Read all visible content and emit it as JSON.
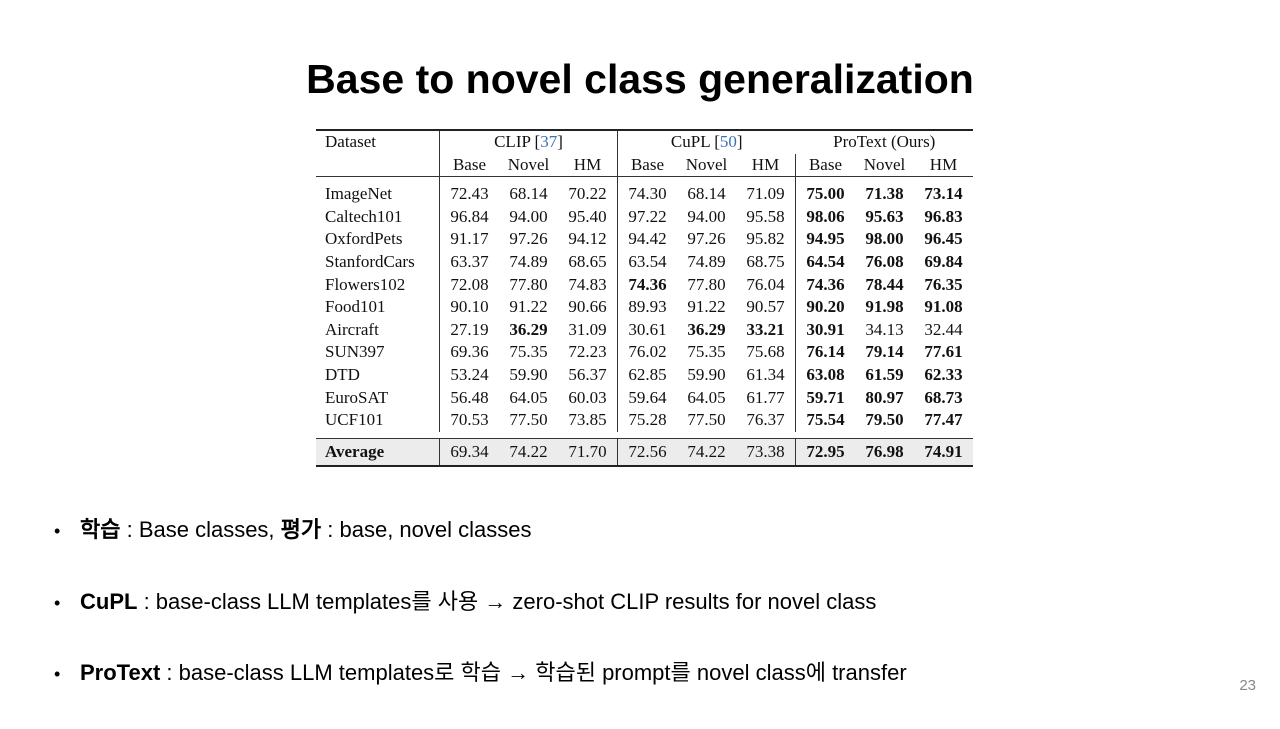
{
  "slide": {
    "title": "Base to novel class generalization",
    "page_number": "23"
  },
  "table": {
    "dataset_header": "Dataset",
    "groups": [
      {
        "name": "CLIP [",
        "cite": "37",
        "close": "]"
      },
      {
        "name": "CuPL [",
        "cite": "50",
        "close": "]"
      },
      {
        "name": "ProText (Ours)",
        "cite": "",
        "close": ""
      }
    ],
    "subheaders": [
      "Base",
      "Novel",
      "HM",
      "Base",
      "Novel",
      "HM",
      "Base",
      "Novel",
      "HM"
    ],
    "rows": [
      {
        "name": "ImageNet",
        "values": [
          "72.43",
          "68.14",
          "70.22",
          "74.30",
          "68.14",
          "71.09",
          "75.00",
          "71.38",
          "73.14"
        ],
        "bold": [
          false,
          false,
          false,
          false,
          false,
          false,
          true,
          true,
          true
        ]
      },
      {
        "name": "Caltech101",
        "values": [
          "96.84",
          "94.00",
          "95.40",
          "97.22",
          "94.00",
          "95.58",
          "98.06",
          "95.63",
          "96.83"
        ],
        "bold": [
          false,
          false,
          false,
          false,
          false,
          false,
          true,
          true,
          true
        ]
      },
      {
        "name": "OxfordPets",
        "values": [
          "91.17",
          "97.26",
          "94.12",
          "94.42",
          "97.26",
          "95.82",
          "94.95",
          "98.00",
          "96.45"
        ],
        "bold": [
          false,
          false,
          false,
          false,
          false,
          false,
          true,
          true,
          true
        ]
      },
      {
        "name": "StanfordCars",
        "values": [
          "63.37",
          "74.89",
          "68.65",
          "63.54",
          "74.89",
          "68.75",
          "64.54",
          "76.08",
          "69.84"
        ],
        "bold": [
          false,
          false,
          false,
          false,
          false,
          false,
          true,
          true,
          true
        ]
      },
      {
        "name": "Flowers102",
        "values": [
          "72.08",
          "77.80",
          "74.83",
          "74.36",
          "77.80",
          "76.04",
          "74.36",
          "78.44",
          "76.35"
        ],
        "bold": [
          false,
          false,
          false,
          true,
          false,
          false,
          true,
          true,
          true
        ]
      },
      {
        "name": "Food101",
        "values": [
          "90.10",
          "91.22",
          "90.66",
          "89.93",
          "91.22",
          "90.57",
          "90.20",
          "91.98",
          "91.08"
        ],
        "bold": [
          false,
          false,
          false,
          false,
          false,
          false,
          true,
          true,
          true
        ]
      },
      {
        "name": "Aircraft",
        "values": [
          "27.19",
          "36.29",
          "31.09",
          "30.61",
          "36.29",
          "33.21",
          "30.91",
          "34.13",
          "32.44"
        ],
        "bold": [
          false,
          true,
          false,
          false,
          true,
          true,
          true,
          false,
          false
        ]
      },
      {
        "name": "SUN397",
        "values": [
          "69.36",
          "75.35",
          "72.23",
          "76.02",
          "75.35",
          "75.68",
          "76.14",
          "79.14",
          "77.61"
        ],
        "bold": [
          false,
          false,
          false,
          false,
          false,
          false,
          true,
          true,
          true
        ]
      },
      {
        "name": "DTD",
        "values": [
          "53.24",
          "59.90",
          "56.37",
          "62.85",
          "59.90",
          "61.34",
          "63.08",
          "61.59",
          "62.33"
        ],
        "bold": [
          false,
          false,
          false,
          false,
          false,
          false,
          true,
          true,
          true
        ]
      },
      {
        "name": "EuroSAT",
        "values": [
          "56.48",
          "64.05",
          "60.03",
          "59.64",
          "64.05",
          "61.77",
          "59.71",
          "80.97",
          "68.73"
        ],
        "bold": [
          false,
          false,
          false,
          false,
          false,
          false,
          true,
          true,
          true
        ]
      },
      {
        "name": "UCF101",
        "values": [
          "70.53",
          "77.50",
          "73.85",
          "75.28",
          "77.50",
          "76.37",
          "75.54",
          "79.50",
          "77.47"
        ],
        "bold": [
          false,
          false,
          false,
          false,
          false,
          false,
          true,
          true,
          true
        ]
      }
    ],
    "average": {
      "name": "Average",
      "values": [
        "69.34",
        "74.22",
        "71.70",
        "72.56",
        "74.22",
        "73.38",
        "72.95",
        "76.98",
        "74.91"
      ],
      "bold": [
        false,
        false,
        false,
        false,
        false,
        false,
        true,
        true,
        true
      ]
    }
  },
  "bullets": [
    {
      "parts": [
        {
          "text": "학습",
          "bold": true
        },
        {
          "text": " : Base classes, ",
          "bold": false
        },
        {
          "text": "평가",
          "bold": true
        },
        {
          "text": " : base, novel classes",
          "bold": false
        }
      ]
    },
    {
      "parts": [
        {
          "text": "CuPL",
          "bold": true
        },
        {
          "text": " : base-class LLM templates를 사용 → zero-shot CLIP results for novel class",
          "bold": false
        }
      ]
    },
    {
      "parts": [
        {
          "text": "ProText",
          "bold": true
        },
        {
          "text": " : base-class LLM templates로 학습 → 학습된 prompt를 novel class에 transfer",
          "bold": false
        }
      ]
    }
  ],
  "bullet_symbol": "•"
}
